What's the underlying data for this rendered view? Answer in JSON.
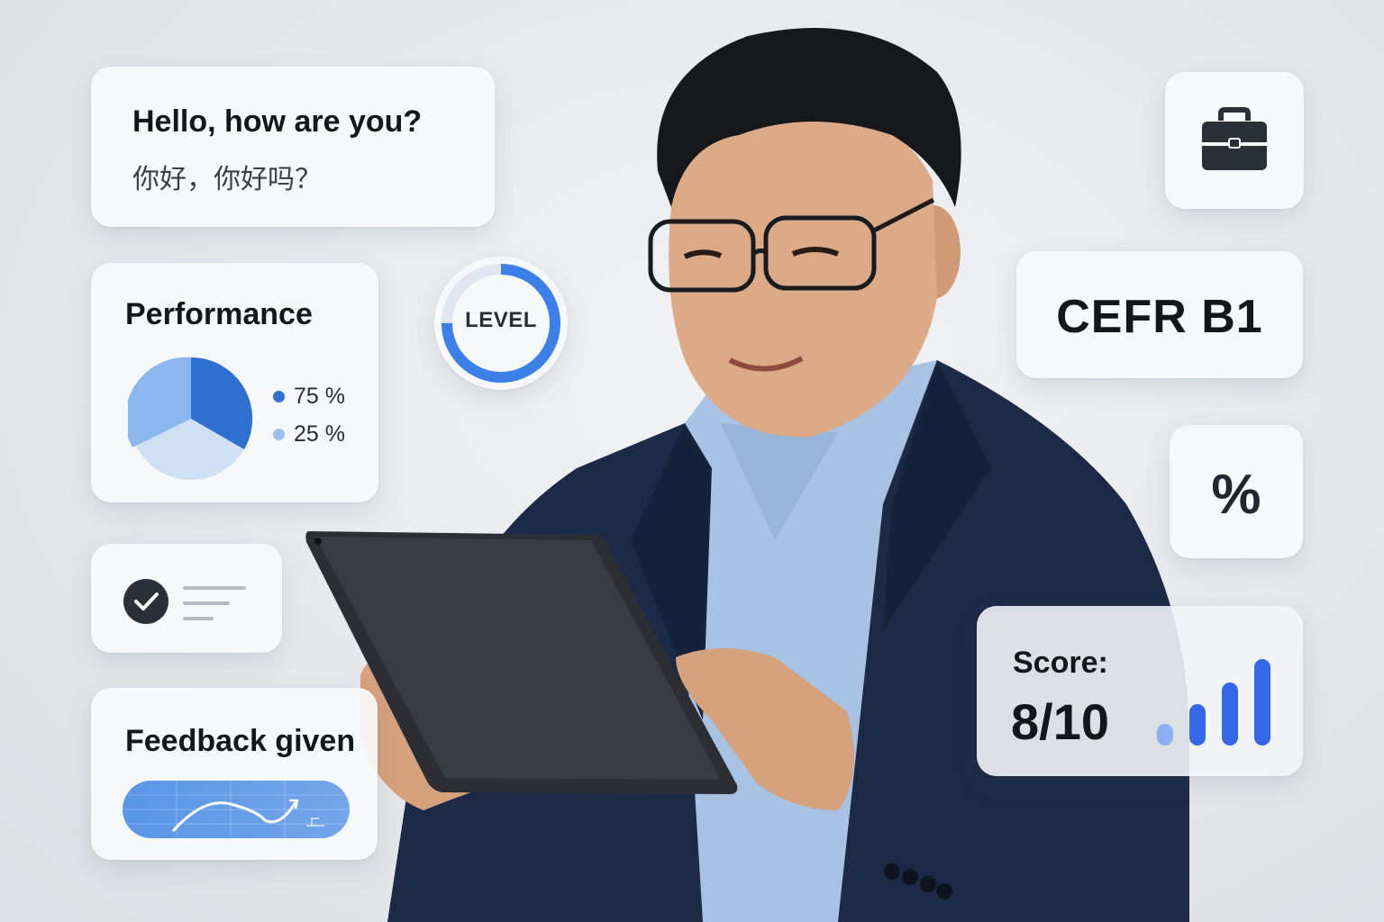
{
  "greeting_card": {
    "english": "Hello, how are you?",
    "chinese": "你好，你好吗？"
  },
  "performance_card": {
    "title": "Performance",
    "legend": [
      {
        "label": "75 %",
        "color": "#3470d1"
      },
      {
        "label": "25 %",
        "color": "#9ec0f0"
      }
    ]
  },
  "level_badge": {
    "label": "LEVEL",
    "progress": 0.75,
    "color": "#3a80e8"
  },
  "task_card": {
    "icon": "check-circle-icon",
    "status": "completed"
  },
  "feedback_card": {
    "title": "Feedback given",
    "icon": "trend-line-icon"
  },
  "briefcase_card": {
    "icon": "briefcase-icon"
  },
  "cefr_card": {
    "label": "CEFR B1"
  },
  "percent_card": {
    "label": "%"
  },
  "score_card": {
    "label": "Score:",
    "value": "8/10",
    "icon": "signal-bars-icon",
    "bar_color": "#3568e6"
  },
  "colors": {
    "accent": "#3a80e8",
    "navy": "#1b2a48",
    "shirt": "#a9c3e2"
  }
}
